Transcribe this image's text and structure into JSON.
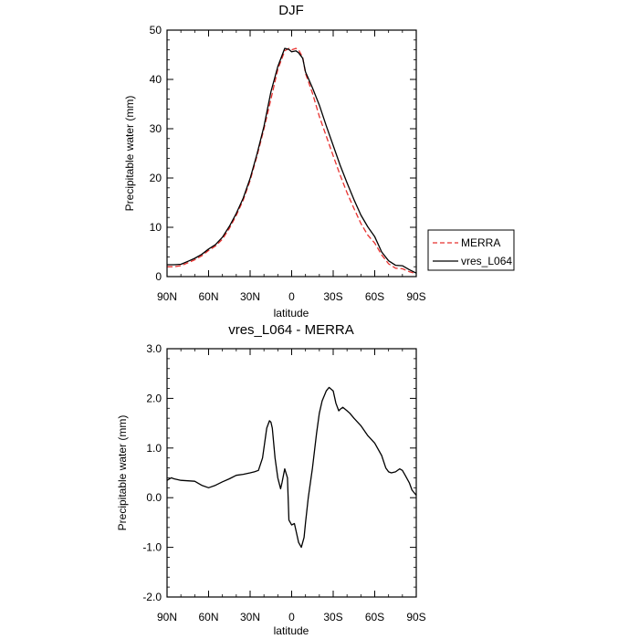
{
  "chart_data": [
    {
      "type": "line",
      "title": "DJF",
      "xlabel": "latitude",
      "ylabel": "Precipitable water (mm)",
      "xlim": [
        90,
        -90
      ],
      "ylim": [
        0,
        50
      ],
      "xticks": [
        90,
        60,
        30,
        0,
        -30,
        -60,
        -90
      ],
      "xtick_labels": [
        "90N",
        "60N",
        "30N",
        "0",
        "30S",
        "60S",
        "90S"
      ],
      "yticks": [
        0,
        10,
        20,
        30,
        40,
        50
      ],
      "ytick_labels": [
        "0",
        "10",
        "20",
        "30",
        "40",
        "50"
      ],
      "legend": {
        "position": "right",
        "entries": [
          {
            "label": "MERRA",
            "color": "#e8312f",
            "style": "dashed"
          },
          {
            "label": "vres_L064",
            "color": "#000000",
            "style": "solid"
          }
        ]
      },
      "series": [
        {
          "name": "MERRA",
          "color": "#e8312f",
          "style": "dashed",
          "x": [
            90,
            85,
            80,
            75,
            70,
            65,
            60,
            55,
            50,
            45,
            40,
            35,
            30,
            25,
            20,
            15,
            10,
            5,
            2,
            0,
            -3,
            -5,
            -8,
            -10,
            -15,
            -20,
            -25,
            -30,
            -35,
            -40,
            -45,
            -50,
            -55,
            -60,
            -65,
            -70,
            -75,
            -80,
            -85,
            -90
          ],
          "y": [
            2.0,
            2.0,
            2.2,
            2.8,
            3.4,
            4.2,
            5.3,
            6.2,
            7.6,
            9.8,
            12.4,
            15.5,
            19.5,
            24.5,
            30.0,
            36.0,
            42.0,
            45.8,
            46.3,
            46.0,
            46.3,
            46.0,
            44.5,
            41.2,
            37.2,
            32.5,
            28.5,
            24.5,
            20.6,
            17.0,
            13.8,
            10.8,
            8.4,
            6.8,
            4.4,
            2.6,
            1.7,
            1.6,
            1.0,
            0.6
          ]
        },
        {
          "name": "vres_L064",
          "color": "#000000",
          "style": "solid",
          "x": [
            90,
            85,
            80,
            75,
            70,
            65,
            60,
            55,
            50,
            45,
            40,
            35,
            30,
            25,
            20,
            15,
            10,
            5,
            2,
            0,
            -3,
            -5,
            -8,
            -10,
            -15,
            -20,
            -25,
            -30,
            -35,
            -40,
            -45,
            -50,
            -55,
            -60,
            -65,
            -70,
            -75,
            -80,
            -85,
            -90
          ],
          "y": [
            2.4,
            2.4,
            2.5,
            3.1,
            3.7,
            4.5,
            5.6,
            6.5,
            8.0,
            10.2,
            12.8,
            15.9,
            19.9,
            24.9,
            30.5,
            37.5,
            42.6,
            46.3,
            46.1,
            45.6,
            45.8,
            45.4,
            44.3,
            41.5,
            38.3,
            34.8,
            30.6,
            26.6,
            22.6,
            19.0,
            15.6,
            12.5,
            10.1,
            8.1,
            5.0,
            3.2,
            2.3,
            2.2,
            1.4,
            0.7
          ]
        }
      ]
    },
    {
      "type": "line",
      "title": "vres_L064 - MERRA",
      "xlabel": "latitude",
      "ylabel": "Precipitable water (mm)",
      "xlim": [
        90,
        -90
      ],
      "ylim": [
        -2,
        3
      ],
      "xticks": [
        90,
        60,
        30,
        0,
        -30,
        -60,
        -90
      ],
      "xtick_labels": [
        "90N",
        "60N",
        "30N",
        "0",
        "30S",
        "60S",
        "90S"
      ],
      "yticks": [
        -2,
        -1,
        0,
        1,
        2,
        3
      ],
      "ytick_labels": [
        "-2.0",
        "-1.0",
        "0.0",
        "1.0",
        "2.0",
        "3.0"
      ],
      "series": [
        {
          "name": "vres_L064 - MERRA",
          "color": "#000000",
          "style": "solid",
          "x": [
            90,
            87,
            85,
            80,
            75,
            70,
            65,
            60,
            55,
            50,
            45,
            40,
            35,
            30,
            27,
            24,
            21,
            18,
            16,
            15,
            14,
            12,
            10,
            8,
            7,
            5,
            3,
            2,
            0,
            -2,
            -3,
            -5,
            -7,
            -9,
            -10,
            -12,
            -15,
            -18,
            -20,
            -22,
            -25,
            -27,
            -30,
            -32,
            -34,
            -35,
            -37,
            -40,
            -42,
            -45,
            -50,
            -55,
            -60,
            -65,
            -68,
            -70,
            -72,
            -75,
            -78,
            -80,
            -82,
            -85,
            -87,
            -90
          ],
          "y": [
            0.35,
            0.4,
            0.38,
            0.35,
            0.34,
            0.33,
            0.25,
            0.2,
            0.25,
            0.32,
            0.38,
            0.45,
            0.47,
            0.5,
            0.52,
            0.55,
            0.8,
            1.4,
            1.55,
            1.52,
            1.4,
            0.8,
            0.4,
            0.18,
            0.3,
            0.58,
            0.4,
            -0.45,
            -0.55,
            -0.52,
            -0.65,
            -0.9,
            -1.0,
            -0.8,
            -0.5,
            0.0,
            0.6,
            1.3,
            1.7,
            1.95,
            2.15,
            2.22,
            2.15,
            1.9,
            1.75,
            1.78,
            1.82,
            1.75,
            1.7,
            1.6,
            1.45,
            1.25,
            1.1,
            0.85,
            0.6,
            0.52,
            0.5,
            0.52,
            0.58,
            0.55,
            0.45,
            0.3,
            0.15,
            0.05
          ]
        }
      ]
    }
  ]
}
